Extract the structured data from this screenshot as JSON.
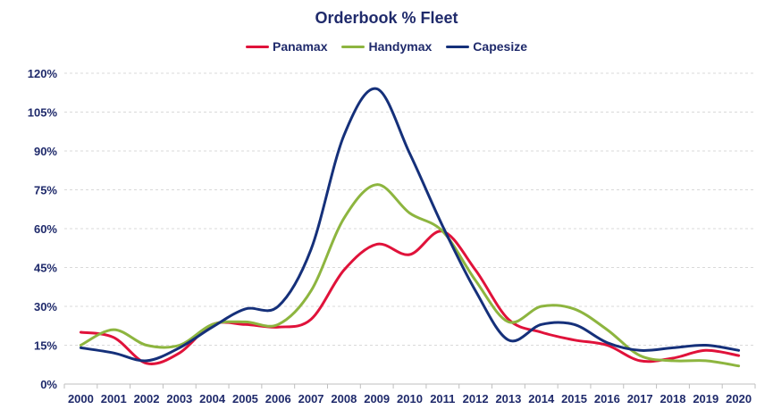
{
  "chart_data": {
    "type": "line",
    "title": "Orderbook % Fleet",
    "xlabel": "",
    "ylabel": "",
    "categories": [
      "2000",
      "2001",
      "2002",
      "2003",
      "2004",
      "2005",
      "2006",
      "2007",
      "2008",
      "2009",
      "2010",
      "2011",
      "2012",
      "2013",
      "2014",
      "2015",
      "2016",
      "2017",
      "2018",
      "2019",
      "2020"
    ],
    "ylim": [
      0,
      120
    ],
    "yticks": [
      "0%",
      "15%",
      "30%",
      "45%",
      "60%",
      "75%",
      "90%",
      "105%",
      "120%"
    ],
    "grid": "horizontal-dashed",
    "legend_position": "top-center",
    "series": [
      {
        "name": "Panamax",
        "color": "#e0123a",
        "values": [
          20,
          18,
          8,
          12,
          23,
          23,
          22,
          25,
          44,
          54,
          50,
          59,
          44,
          25,
          20,
          17,
          15,
          9,
          10,
          13,
          11
        ]
      },
      {
        "name": "Handymax",
        "color": "#8db53f",
        "values": [
          15,
          21,
          15,
          15,
          23,
          24,
          23,
          36,
          64,
          77,
          66,
          59,
          40,
          24,
          30,
          29,
          21,
          11,
          9,
          9,
          7
        ]
      },
      {
        "name": "Capesize",
        "color": "#15307a",
        "values": [
          14,
          12,
          9,
          14,
          22,
          29,
          30,
          52,
          96,
          114,
          89,
          61,
          36,
          17,
          23,
          23,
          16,
          13,
          14,
          15,
          13
        ]
      }
    ]
  }
}
